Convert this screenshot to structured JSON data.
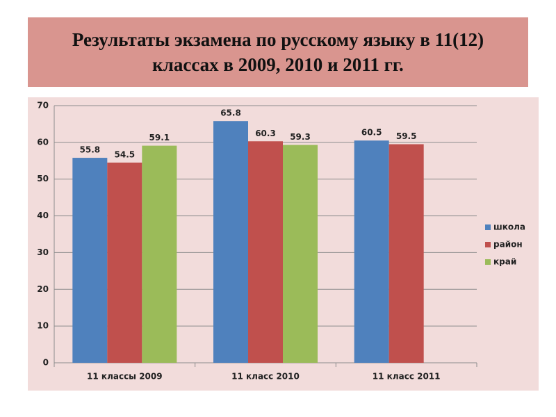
{
  "chart_data": {
    "type": "bar",
    "title": "Результаты экзамена по русскому языку в 11(12) классах в 2009, 2010 и 2011 гг.",
    "categories": [
      "11 классы 2009",
      "11 класс 2010",
      "11 класс 2011"
    ],
    "series": [
      {
        "name": "школа",
        "color": "#4f81bd",
        "values": [
          55.8,
          65.8,
          60.5
        ]
      },
      {
        "name": "район",
        "color": "#c0504d",
        "values": [
          54.5,
          60.3,
          59.5
        ]
      },
      {
        "name": "край",
        "color": "#9bbb59",
        "values": [
          59.1,
          59.3,
          null
        ]
      }
    ],
    "ylim": [
      0,
      70
    ],
    "yticks": [
      0,
      10,
      20,
      30,
      40,
      50,
      60,
      70
    ],
    "grid": true,
    "legend": "right"
  }
}
